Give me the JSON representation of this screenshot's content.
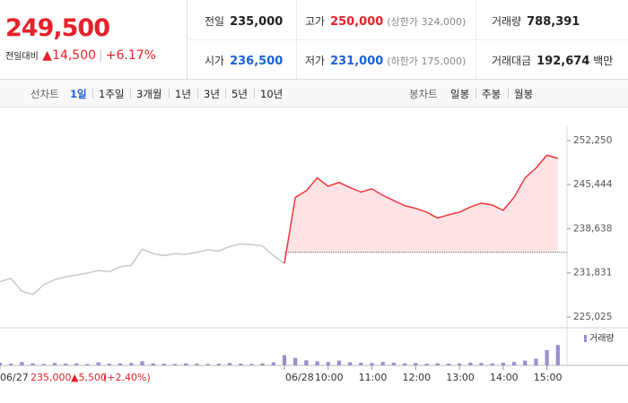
{
  "header": {
    "price": "249,500",
    "change_label": "전일대비",
    "change": "▲14,500",
    "change_pct": "+6.17%"
  },
  "stats": [
    {
      "label": "전일",
      "value": "235,000"
    },
    {
      "label": "고가",
      "value": "250,000",
      "note": "(상한가 324,000)"
    },
    {
      "label": "거래량",
      "value": "788,391"
    },
    {
      "label": "시가",
      "value": "236,500"
    },
    {
      "label": "저가",
      "value": "231,000",
      "note": "(하한가 175,000)"
    },
    {
      "label": "거래대금",
      "value": "192,674",
      "unit": "백만"
    }
  ],
  "tabs": {
    "left_label": "선차트",
    "left": [
      "1일",
      "1주일",
      "3개월",
      "1년",
      "3년",
      "5년",
      "10년"
    ],
    "right_label": "봉차트",
    "right": [
      "일봉",
      "주봉",
      "월봉"
    ]
  },
  "chart_data": {
    "type": "line",
    "x": [
      0,
      0.25,
      0.5,
      0.75,
      1,
      1.25,
      1.5,
      1.75,
      2,
      2.25,
      2.5,
      2.75,
      3,
      3.25,
      3.5,
      3.75,
      4,
      4.25,
      4.5,
      4.75,
      5,
      5.25,
      5.5,
      5.75,
      6,
      6.25,
      6.5,
      6.75,
      7,
      7.25,
      7.5,
      7.75,
      8,
      8.25,
      8.5,
      8.75,
      9,
      9.25,
      9.5,
      9.75,
      10,
      10.25,
      10.5,
      10.75,
      11,
      11.25,
      11.5,
      11.75,
      12,
      12.25,
      12.5,
      12.75
    ],
    "series": [
      {
        "color": "#c8c8c8",
        "values": [
          230500,
          231000,
          229000,
          228500,
          230000,
          230800,
          231200,
          231500,
          231800,
          232200,
          232000,
          232800,
          233000,
          235500,
          234800,
          234500,
          234800,
          234700,
          235000,
          235400,
          235200,
          235900,
          236300,
          236200,
          236000,
          234500,
          233300,
          null,
          null,
          null,
          null,
          null,
          null,
          null,
          null,
          null,
          null,
          null,
          null,
          null,
          null,
          null,
          null,
          null,
          null,
          null,
          null,
          null,
          null,
          null,
          null,
          null
        ]
      },
      {
        "color": "#f0373d",
        "fill": "#fde3e4",
        "values": [
          null,
          null,
          null,
          null,
          null,
          null,
          null,
          null,
          null,
          null,
          null,
          null,
          null,
          null,
          null,
          null,
          null,
          null,
          null,
          null,
          null,
          null,
          null,
          null,
          null,
          null,
          233300,
          243500,
          244500,
          246500,
          245200,
          245800,
          245000,
          244300,
          244800,
          243800,
          243000,
          242200,
          241800,
          241200,
          240300,
          240800,
          241200,
          242000,
          242600,
          242300,
          241500,
          243500,
          246500,
          248000,
          250000,
          249500
        ]
      }
    ],
    "baseline": 235000,
    "ylim": [
      223500,
      254600
    ],
    "yticks": [
      {
        "value": 225025,
        "label": "225,025"
      },
      {
        "value": 231831,
        "label": "231,831"
      },
      {
        "value": 238638,
        "label": "238,638"
      },
      {
        "value": 245444,
        "label": "245,444"
      },
      {
        "value": 252250,
        "label": "252,250"
      }
    ],
    "xlim": [
      0,
      13
    ],
    "xticks": [
      {
        "value": 0,
        "label": "06/27"
      },
      {
        "value": 6.5,
        "label": "06/28"
      },
      {
        "value": 7.5,
        "label": "10:00"
      },
      {
        "value": 8.5,
        "label": "11:00"
      },
      {
        "value": 9.5,
        "label": "12:00"
      },
      {
        "value": 10.5,
        "label": "13:00"
      },
      {
        "value": 11.5,
        "label": "14:00"
      },
      {
        "value": 12.5,
        "label": "15:00"
      }
    ],
    "volume": {
      "name": "거래량",
      "color": "#9a8fd0",
      "values": [
        8,
        5,
        10,
        6,
        4,
        7,
        5,
        6,
        4,
        9,
        5,
        6,
        7,
        12,
        6,
        5,
        4,
        6,
        5,
        4,
        5,
        7,
        5,
        4,
        6,
        9,
        30,
        22,
        15,
        12,
        10,
        14,
        9,
        8,
        7,
        10,
        8,
        6,
        7,
        5,
        6,
        5,
        6,
        8,
        7,
        6,
        8,
        10,
        14,
        20,
        45,
        60
      ]
    },
    "vlim": [
      0,
      100
    ],
    "footer": {
      "close": "235,000",
      "change": "▲5,500",
      "change_pct": "(+2.40%)"
    }
  }
}
